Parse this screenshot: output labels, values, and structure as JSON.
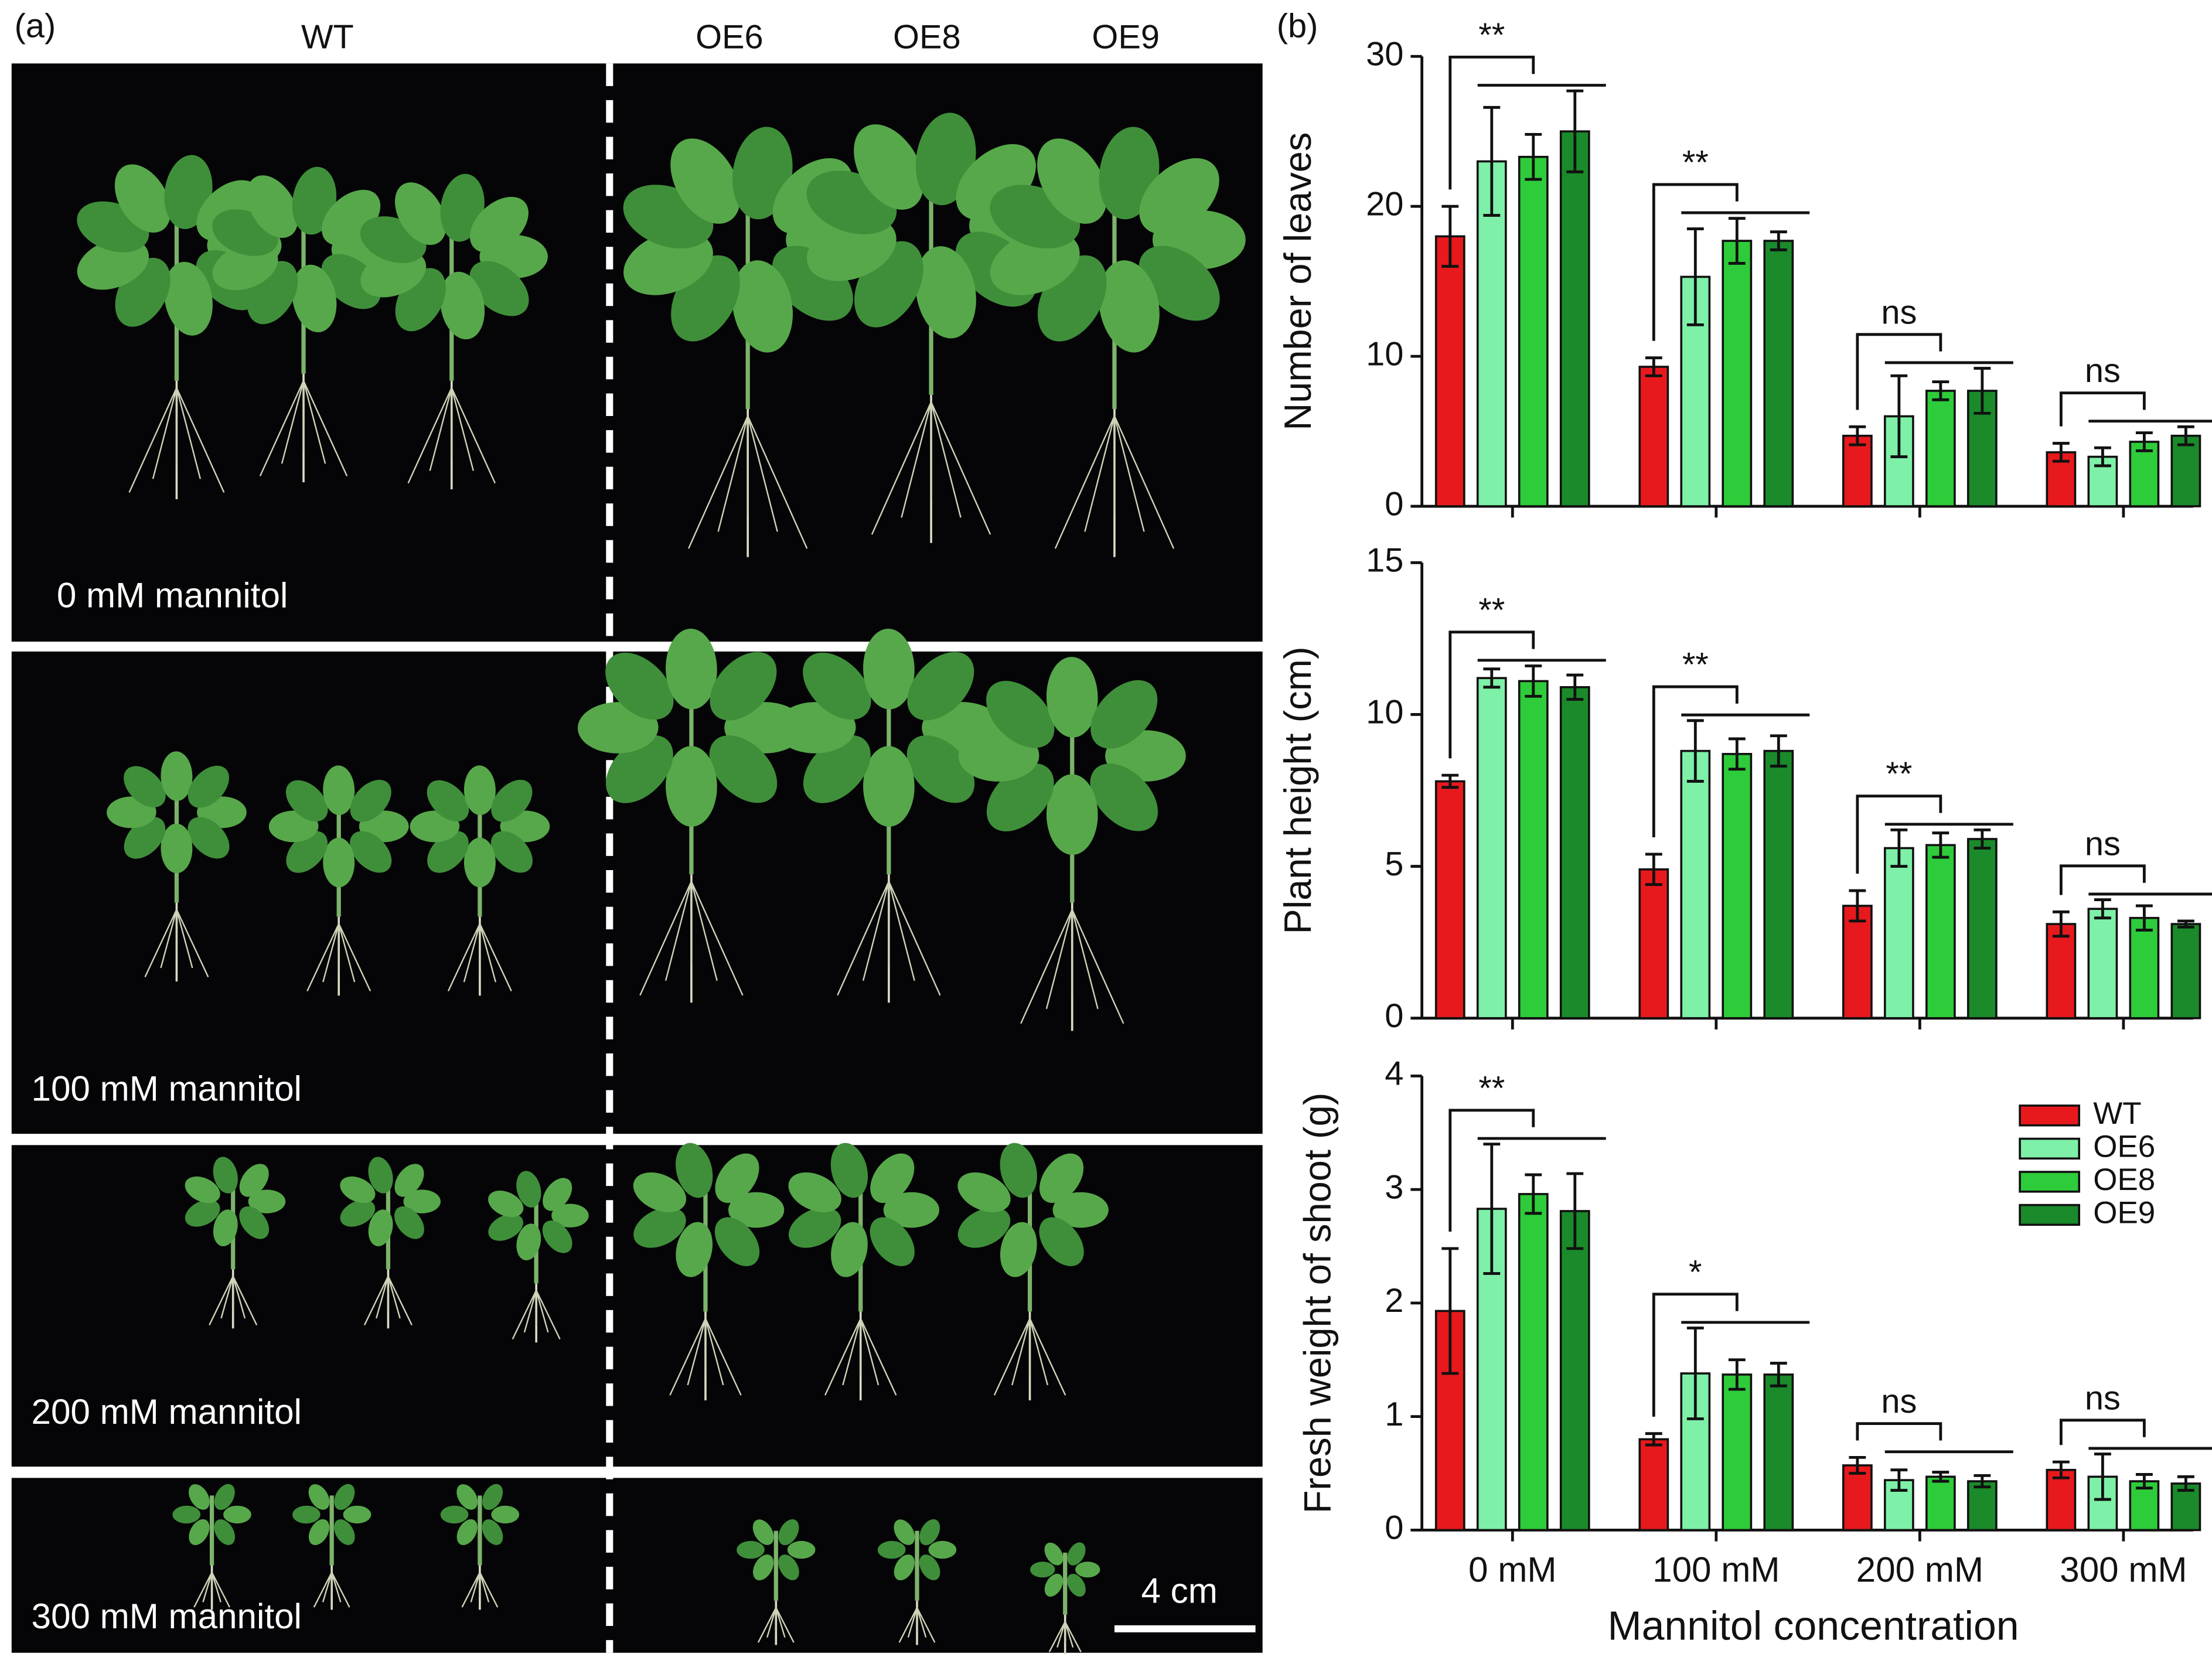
{
  "photo_panel": {
    "label": "(a)",
    "genotypes": [
      "WT",
      "OE6",
      "OE8",
      "OE9"
    ],
    "treatments": [
      "0 mM mannitol",
      "100 mM mannitol",
      "200 mM mannitol",
      "300 mM mannitol"
    ],
    "scale_bar": "4 cm"
  },
  "panel_b_label": "(b)",
  "chart_data": [
    {
      "type": "bar",
      "ylabel": "Number of leaves",
      "categories": [
        null,
        null,
        null,
        null
      ],
      "series": [
        {
          "name": "WT",
          "color": "#e8191d",
          "values": [
            18,
            9.3,
            4.7,
            3.6
          ],
          "errors": [
            2,
            0.6,
            0.6,
            0.6
          ]
        },
        {
          "name": "OE6",
          "color": "#7ef0a8",
          "values": [
            23,
            15.3,
            6,
            3.3
          ],
          "errors": [
            3.6,
            3.2,
            2.7,
            0.6
          ]
        },
        {
          "name": "OE8",
          "color": "#2ecc3a",
          "values": [
            23.3,
            17.7,
            7.7,
            4.3
          ],
          "errors": [
            1.5,
            1.5,
            0.6,
            0.6
          ]
        },
        {
          "name": "OE9",
          "color": "#1a8a2a",
          "values": [
            25,
            17.7,
            7.7,
            4.7
          ],
          "errors": [
            2.7,
            0.6,
            1.5,
            0.6
          ]
        }
      ],
      "annotations": [
        "**",
        "**",
        "ns",
        "ns"
      ],
      "ylim": [
        0,
        30
      ],
      "yticks": [
        0,
        10,
        20,
        30
      ]
    },
    {
      "type": "bar",
      "ylabel": "Plant height (cm)",
      "categories": [
        null,
        null,
        null,
        null
      ],
      "series": [
        {
          "name": "WT",
          "color": "#e8191d",
          "values": [
            7.8,
            4.9,
            3.7,
            3.1
          ],
          "errors": [
            0.2,
            0.5,
            0.5,
            0.4
          ]
        },
        {
          "name": "OE6",
          "color": "#7ef0a8",
          "values": [
            11.2,
            8.8,
            5.6,
            3.6
          ],
          "errors": [
            0.3,
            1.0,
            0.6,
            0.3
          ]
        },
        {
          "name": "OE8",
          "color": "#2ecc3a",
          "values": [
            11.1,
            8.7,
            5.7,
            3.3
          ],
          "errors": [
            0.5,
            0.5,
            0.4,
            0.4
          ]
        },
        {
          "name": "OE9",
          "color": "#1a8a2a",
          "values": [
            10.9,
            8.8,
            5.9,
            3.1
          ],
          "errors": [
            0.4,
            0.5,
            0.3,
            0.1
          ]
        }
      ],
      "annotations": [
        "**",
        "**",
        "**",
        "ns"
      ],
      "ylim": [
        0,
        15
      ],
      "yticks": [
        0,
        5,
        10,
        15
      ]
    },
    {
      "type": "bar",
      "ylabel": "Fresh weight of shoot (g)",
      "xlabel": "Mannitol concentration",
      "categories": [
        "0 mM",
        "100 mM",
        "200 mM",
        "300 mM"
      ],
      "series": [
        {
          "name": "WT",
          "color": "#e8191d",
          "values": [
            1.93,
            0.8,
            0.57,
            0.53
          ],
          "errors": [
            0.55,
            0.05,
            0.07,
            0.07
          ]
        },
        {
          "name": "OE6",
          "color": "#7ef0a8",
          "values": [
            2.83,
            1.38,
            0.44,
            0.47
          ],
          "errors": [
            0.57,
            0.4,
            0.09,
            0.2
          ]
        },
        {
          "name": "OE8",
          "color": "#2ecc3a",
          "values": [
            2.96,
            1.37,
            0.47,
            0.43
          ],
          "errors": [
            0.17,
            0.13,
            0.04,
            0.06
          ]
        },
        {
          "name": "OE9",
          "color": "#1a8a2a",
          "values": [
            2.81,
            1.37,
            0.43,
            0.41
          ],
          "errors": [
            0.33,
            0.1,
            0.05,
            0.06
          ]
        }
      ],
      "annotations": [
        "**",
        "*",
        "ns",
        "ns"
      ],
      "ylim": [
        0,
        4
      ],
      "yticks": [
        0,
        1,
        2,
        3,
        4
      ],
      "legend": "upper right"
    }
  ]
}
